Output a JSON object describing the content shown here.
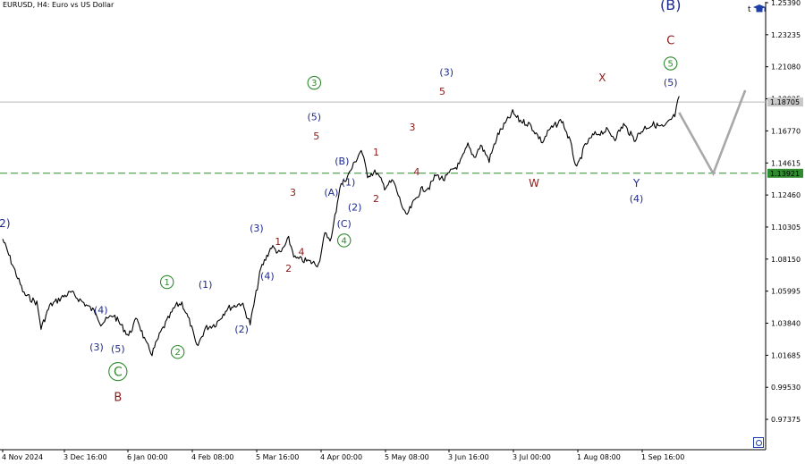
{
  "header": {
    "symbol_text": "EURUSD, H4:  Euro vs US Dollar",
    "corner_letter": "t"
  },
  "icons": {
    "top_right": "graduation-cap-icon",
    "bottom_right": "zoom-circle-icon"
  },
  "colors": {
    "candles": "#000000",
    "price_line": "#b8b8b8",
    "green_level": "#2e8b2e",
    "projection": "#a8a8a8",
    "label_blue": "#1f2a8a",
    "label_red": "#8b1a1a",
    "label_green": "#2e8b2e",
    "axis": "#000000"
  },
  "chart_data": {
    "type": "line",
    "instrument": "EURUSD",
    "timeframe": "H4",
    "title": "Euro vs US Dollar",
    "ylim": [
      0.9625,
      1.2539
    ],
    "y_ticks": [
      "1.25390",
      "1.23235",
      "1.21080",
      "1.18925",
      "1.16770",
      "1.14615",
      "1.12460",
      "1.10305",
      "1.08150",
      "1.05995",
      "1.03840",
      "1.01685",
      "0.99530",
      "0.97375"
    ],
    "x_ticks": [
      "4 Nov 2024",
      "3 Dec 16:00",
      "6 Jan 00:00",
      "4 Feb 08:00",
      "5 Mar 16:00",
      "4 Apr 00:00",
      "5 May 08:00",
      "3 Jun 16:00",
      "3 Jul 00:00",
      "1 Aug 08:00",
      "1 Sep 16:00"
    ],
    "current_price": {
      "label": "1.18705",
      "value": 1.1871
    },
    "horizontal_level": {
      "label": "1.13921",
      "value": 1.1392
    },
    "price_path": [
      [
        "4 Nov 2024",
        1.095
      ],
      [
        "8 Nov 2024",
        1.08
      ],
      [
        "14 Nov 2024",
        1.058
      ],
      [
        "20 Nov 2024",
        1.052
      ],
      [
        "22 Nov 2024",
        1.035
      ],
      [
        "26 Nov 2024",
        1.05
      ],
      [
        "2 Dec 2024",
        1.056
      ],
      [
        "6 Dec 2024",
        1.059
      ],
      [
        "12 Dec 2024",
        1.052
      ],
      [
        "18 Dec 2024",
        1.045
      ],
      [
        "20 Dec 2024",
        1.038
      ],
      [
        "26 Dec 2024",
        1.044
      ],
      [
        "2 Jan 2025",
        1.03
      ],
      [
        "6 Jan 2025",
        1.042
      ],
      [
        "10 Jan 2025",
        1.025
      ],
      [
        "13 Jan 2025",
        1.018
      ],
      [
        "17 Jan 2025",
        1.032
      ],
      [
        "24 Jan 2025",
        1.05
      ],
      [
        "27 Jan 2025",
        1.052
      ],
      [
        "31 Jan 2025",
        1.038
      ],
      [
        "3 Feb 2025",
        1.022
      ],
      [
        "7 Feb 2025",
        1.035
      ],
      [
        "12 Feb 2025",
        1.038
      ],
      [
        "17 Feb 2025",
        1.048
      ],
      [
        "24 Feb 2025",
        1.052
      ],
      [
        "28 Feb 2025",
        1.038
      ],
      [
        "5 Mar 2025",
        1.075
      ],
      [
        "10 Mar 2025",
        1.09
      ],
      [
        "14 Mar 2025",
        1.085
      ],
      [
        "18 Mar 2025",
        1.095
      ],
      [
        "21 Mar 2025",
        1.082
      ],
      [
        "27 Mar 2025",
        1.08
      ],
      [
        "1 Apr 2025",
        1.078
      ],
      [
        "4 Apr 2025",
        1.098
      ],
      [
        "7 Apr 2025",
        1.095
      ],
      [
        "11 Apr 2025",
        1.13
      ],
      [
        "15 Apr 2025",
        1.138
      ],
      [
        "21 Apr 2025",
        1.155
      ],
      [
        "24 Apr 2025",
        1.138
      ],
      [
        "28 Apr 2025",
        1.14
      ],
      [
        "2 May 2025",
        1.13
      ],
      [
        "6 May 2025",
        1.134
      ],
      [
        "9 May 2025",
        1.122
      ],
      [
        "12 May 2025",
        1.11
      ],
      [
        "15 May 2025",
        1.118
      ],
      [
        "19 May 2025",
        1.128
      ],
      [
        "23 May 2025",
        1.13
      ],
      [
        "26 May 2025",
        1.138
      ],
      [
        "30 May 2025",
        1.135
      ],
      [
        "3 Jun 2025",
        1.142
      ],
      [
        "6 Jun 2025",
        1.145
      ],
      [
        "10 Jun 2025",
        1.158
      ],
      [
        "13 Jun 2025",
        1.15
      ],
      [
        "16 Jun 2025",
        1.158
      ],
      [
        "20 Jun 2025",
        1.148
      ],
      [
        "24 Jun 2025",
        1.165
      ],
      [
        "1 Jul 2025",
        1.18
      ],
      [
        "4 Jul 2025",
        1.175
      ],
      [
        "9 Jul 2025",
        1.172
      ],
      [
        "15 Jul 2025",
        1.16
      ],
      [
        "18 Jul 2025",
        1.168
      ],
      [
        "24 Jul 2025",
        1.175
      ],
      [
        "28 Jul 2025",
        1.16
      ],
      [
        "31 Jul 2025",
        1.142
      ],
      [
        "4 Aug 2025",
        1.158
      ],
      [
        "8 Aug 2025",
        1.165
      ],
      [
        "14 Aug 2025",
        1.168
      ],
      [
        "18 Aug 2025",
        1.163
      ],
      [
        "22 Aug 2025",
        1.172
      ],
      [
        "27 Aug 2025",
        1.162
      ],
      [
        "1 Sep 2025",
        1.17
      ],
      [
        "5 Sep 2025",
        1.172
      ],
      [
        "10 Sep 2025",
        1.17
      ],
      [
        "15 Sep 2025",
        1.178
      ],
      [
        "17 Sep 2025",
        1.191
      ]
    ],
    "projection_path": [
      [
        "17 Sep 2025",
        1.18
      ],
      [
        "3 Oct 2025",
        1.139
      ],
      [
        "18 Oct 2025",
        1.195
      ]
    ],
    "annotations": [
      {
        "text": "(2)",
        "date": "4 Nov 2024",
        "price": 1.103,
        "color": "blue",
        "size": 12
      },
      {
        "text": "(4)",
        "date": "20 Dec 2024",
        "price": 1.045,
        "color": "blue",
        "size": 11
      },
      {
        "text": "(3)",
        "date": "18 Dec 2024",
        "price": 1.02,
        "color": "blue",
        "size": 11
      },
      {
        "text": "(5)",
        "date": "28 Dec 2024",
        "price": 1.019,
        "color": "blue",
        "size": 11
      },
      {
        "text": "C",
        "date": "28 Dec 2024",
        "price": 1.003,
        "color": "green",
        "size": 14,
        "circled": true
      },
      {
        "text": "B",
        "date": "28 Dec 2024",
        "price": 0.986,
        "color": "red",
        "size": 13
      },
      {
        "text": "1",
        "date": "20 Jan 2025",
        "price": 1.064,
        "color": "green",
        "size": 10,
        "circled": true
      },
      {
        "text": "2",
        "date": "25 Jan 2025",
        "price": 1.017,
        "color": "green",
        "size": 10,
        "circled": true
      },
      {
        "text": "(1)",
        "date": "7 Feb 2025",
        "price": 1.062,
        "color": "blue",
        "size": 11
      },
      {
        "text": "(2)",
        "date": "24 Feb 2025",
        "price": 1.032,
        "color": "blue",
        "size": 11
      },
      {
        "text": "(3)",
        "date": "3 Mar 2025",
        "price": 1.1,
        "color": "blue",
        "size": 11
      },
      {
        "text": "1",
        "date": "13 Mar 2025",
        "price": 1.091,
        "color": "red",
        "size": 11
      },
      {
        "text": "2",
        "date": "18 Mar 2025",
        "price": 1.073,
        "color": "red",
        "size": 11
      },
      {
        "text": "(4)",
        "date": "8 Mar 2025",
        "price": 1.068,
        "color": "blue",
        "size": 11
      },
      {
        "text": "3",
        "date": "20 Mar 2025",
        "price": 1.124,
        "color": "red",
        "size": 11
      },
      {
        "text": "4",
        "date": "24 Mar 2025",
        "price": 1.084,
        "color": "red",
        "size": 11
      },
      {
        "text": "3",
        "date": "30 Mar 2025",
        "price": 1.198,
        "color": "green",
        "size": 10,
        "circled": true
      },
      {
        "text": "(5)",
        "date": "30 Mar 2025",
        "price": 1.175,
        "color": "blue",
        "size": 11
      },
      {
        "text": "5",
        "date": "31 Mar 2025",
        "price": 1.162,
        "color": "red",
        "size": 11
      },
      {
        "text": "(B)",
        "date": "12 Apr 2025",
        "price": 1.145,
        "color": "blue",
        "size": 11
      },
      {
        "text": "(A)",
        "date": "7 Apr 2025",
        "price": 1.124,
        "color": "blue",
        "size": 11
      },
      {
        "text": "(1)",
        "date": "15 Apr 2025",
        "price": 1.131,
        "color": "blue",
        "size": 11
      },
      {
        "text": "(2)",
        "date": "18 Apr 2025",
        "price": 1.114,
        "color": "blue",
        "size": 11
      },
      {
        "text": "(C)",
        "date": "13 Apr 2025",
        "price": 1.103,
        "color": "blue",
        "size": 11
      },
      {
        "text": "4",
        "date": "13 Apr 2025",
        "price": 1.092,
        "color": "green",
        "size": 10,
        "circled": true
      },
      {
        "text": "1",
        "date": "28 Apr 2025",
        "price": 1.151,
        "color": "red",
        "size": 11
      },
      {
        "text": "2",
        "date": "28 Apr 2025",
        "price": 1.12,
        "color": "red",
        "size": 11
      },
      {
        "text": "3",
        "date": "15 May 2025",
        "price": 1.168,
        "color": "red",
        "size": 11
      },
      {
        "text": "4",
        "date": "17 May 2025",
        "price": 1.138,
        "color": "red",
        "size": 11
      },
      {
        "text": "(3)",
        "date": "31 May 2025",
        "price": 1.205,
        "color": "blue",
        "size": 11
      },
      {
        "text": "5",
        "date": "29 May 2025",
        "price": 1.192,
        "color": "red",
        "size": 11
      },
      {
        "text": "W",
        "date": "11 Jul 2025",
        "price": 1.13,
        "color": "red",
        "size": 12
      },
      {
        "text": "X",
        "date": "12 Aug 2025",
        "price": 1.201,
        "color": "red",
        "size": 12
      },
      {
        "text": "Y",
        "date": "28 Aug 2025",
        "price": 1.13,
        "color": "blue",
        "size": 12
      },
      {
        "text": "(4)",
        "date": "28 Aug 2025",
        "price": 1.12,
        "color": "blue",
        "size": 11
      },
      {
        "text": "(B)",
        "date": "13 Sep 2025",
        "price": 1.249,
        "color": "blue",
        "size": 16
      },
      {
        "text": "C",
        "date": "13 Sep 2025",
        "price": 1.226,
        "color": "red",
        "size": 13
      },
      {
        "text": "5",
        "date": "13 Sep 2025",
        "price": 1.211,
        "color": "green",
        "size": 10,
        "circled": true
      },
      {
        "text": "(5)",
        "date": "13 Sep 2025",
        "price": 1.198,
        "color": "blue",
        "size": 11
      }
    ]
  }
}
